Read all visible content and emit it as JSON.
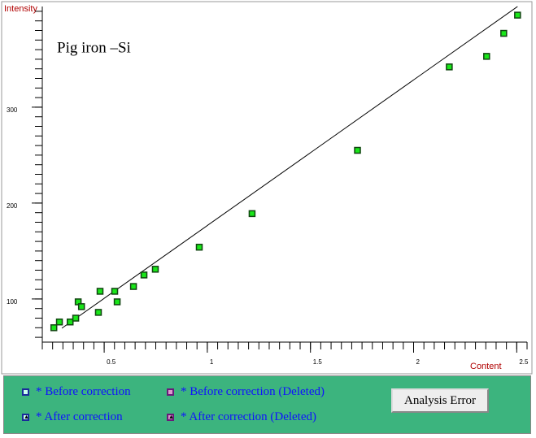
{
  "chart_data": {
    "type": "scatter",
    "annotation": "Pig iron –Si",
    "y_label": "Intensity",
    "x_label": "Content",
    "xlim": [
      0.2,
      2.55
    ],
    "ylim": [
      55,
      405
    ],
    "xticks": [
      0.5,
      1,
      1.5,
      2,
      2.5
    ],
    "yticks": [
      100,
      200,
      300
    ],
    "minor_tick_step": {
      "x": 0.05,
      "y": 10
    },
    "series": [
      {
        "color": "#19e619",
        "x": [
          0.256,
          0.283,
          0.335,
          0.362,
          0.374,
          0.39,
          0.472,
          0.48,
          0.551,
          0.563,
          0.642,
          0.693,
          0.748,
          0.961,
          1.217,
          1.728,
          2.173,
          2.354,
          2.437,
          2.504
        ],
        "values": [
          70,
          76,
          76,
          80,
          97,
          92,
          86,
          108,
          108,
          97,
          113,
          125,
          131,
          154,
          189,
          255,
          342,
          353,
          377,
          396
        ]
      }
    ],
    "fit": {
      "x": [
        0.295,
        2.504
      ],
      "y": [
        69.5,
        405
      ]
    }
  },
  "legend_panel": {
    "items": [
      "* Before correction",
      "* Before correction (Deleted)",
      "* After correction",
      "* After correction (Deleted)"
    ],
    "button": "Analysis Error"
  }
}
